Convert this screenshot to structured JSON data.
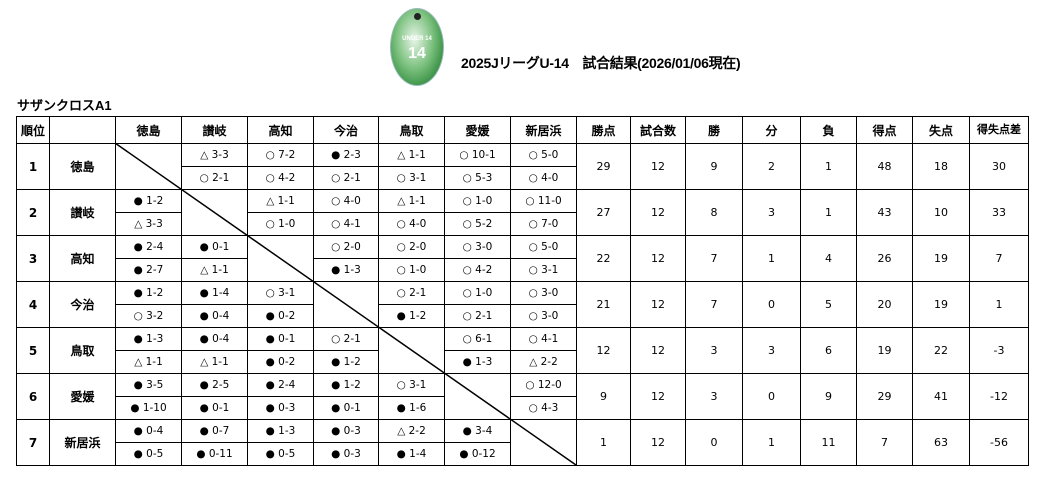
{
  "header": {
    "logo_text": "UNDER 14",
    "title": "2025JリーグU-14　試合結果(2026/01/06現在)"
  },
  "group": "サザンクロスA1",
  "columns": {
    "rank": "順位",
    "teams": [
      "徳島",
      "讃岐",
      "高知",
      "今治",
      "鳥取",
      "愛媛",
      "新居浜"
    ],
    "stats": [
      "勝点",
      "試合数",
      "勝",
      "分",
      "負",
      "得点",
      "失点",
      "得失点差"
    ]
  },
  "legend_symbols": {
    "win": "○",
    "draw": "△",
    "loss": "●"
  },
  "rows": [
    {
      "rank": "1",
      "team": "徳島",
      "matches": [
        null,
        [
          "△ 3-3",
          "○ 2-1"
        ],
        [
          "○ 7-2",
          "○ 4-2"
        ],
        [
          "● 2-3",
          "○ 2-1"
        ],
        [
          "△ 1-1",
          "○ 3-1"
        ],
        [
          "○ 10-1",
          "○ 5-3"
        ],
        [
          "○ 5-0",
          "○ 4-0"
        ]
      ],
      "stats": [
        "29",
        "12",
        "9",
        "2",
        "1",
        "48",
        "18",
        "30"
      ]
    },
    {
      "rank": "2",
      "team": "讃岐",
      "matches": [
        [
          "● 1-2",
          "△ 3-3"
        ],
        null,
        [
          "△ 1-1",
          "○ 1-0"
        ],
        [
          "○ 4-0",
          "○ 4-1"
        ],
        [
          "△ 1-1",
          "○ 4-0"
        ],
        [
          "○ 1-0",
          "○ 5-2"
        ],
        [
          "○ 11-0",
          "○ 7-0"
        ]
      ],
      "stats": [
        "27",
        "12",
        "8",
        "3",
        "1",
        "43",
        "10",
        "33"
      ]
    },
    {
      "rank": "3",
      "team": "高知",
      "matches": [
        [
          "● 2-4",
          "● 2-7"
        ],
        [
          "● 0-1",
          "△ 1-1"
        ],
        null,
        [
          "○ 2-0",
          "● 1-3"
        ],
        [
          "○ 2-0",
          "○ 1-0"
        ],
        [
          "○ 3-0",
          "○ 4-2"
        ],
        [
          "○ 5-0",
          "○ 3-1"
        ]
      ],
      "stats": [
        "22",
        "12",
        "7",
        "1",
        "4",
        "26",
        "19",
        "7"
      ]
    },
    {
      "rank": "4",
      "team": "今治",
      "matches": [
        [
          "● 1-2",
          "○ 3-2"
        ],
        [
          "● 1-4",
          "● 0-4"
        ],
        [
          "○ 3-1",
          "● 0-2"
        ],
        null,
        [
          "○ 2-1",
          "● 1-2"
        ],
        [
          "○ 1-0",
          "○ 2-1"
        ],
        [
          "○ 3-0",
          "○ 3-0"
        ]
      ],
      "stats": [
        "21",
        "12",
        "7",
        "0",
        "5",
        "20",
        "19",
        "1"
      ]
    },
    {
      "rank": "5",
      "team": "鳥取",
      "matches": [
        [
          "● 1-3",
          "△ 1-1"
        ],
        [
          "● 0-4",
          "△ 1-1"
        ],
        [
          "● 0-1",
          "● 0-2"
        ],
        [
          "○ 2-1",
          "● 1-2"
        ],
        null,
        [
          "○ 6-1",
          "● 1-3"
        ],
        [
          "○ 4-1",
          "△ 2-2"
        ]
      ],
      "stats": [
        "12",
        "12",
        "3",
        "3",
        "6",
        "19",
        "22",
        "-3"
      ]
    },
    {
      "rank": "6",
      "team": "愛媛",
      "matches": [
        [
          "● 3-5",
          "● 1-10"
        ],
        [
          "● 2-5",
          "● 0-1"
        ],
        [
          "● 2-4",
          "● 0-3"
        ],
        [
          "● 1-2",
          "● 0-1"
        ],
        [
          "○ 3-1",
          "● 1-6"
        ],
        null,
        [
          "○ 12-0",
          "○ 4-3"
        ]
      ],
      "stats": [
        "9",
        "12",
        "3",
        "0",
        "9",
        "29",
        "41",
        "-12"
      ]
    },
    {
      "rank": "7",
      "team": "新居浜",
      "matches": [
        [
          "● 0-4",
          "● 0-5"
        ],
        [
          "● 0-7",
          "● 0-11"
        ],
        [
          "● 1-3",
          "● 0-5"
        ],
        [
          "● 0-3",
          "● 0-3"
        ],
        [
          "△ 2-2",
          "● 1-4"
        ],
        [
          "● 3-4",
          "● 0-12"
        ],
        null
      ],
      "stats": [
        "1",
        "12",
        "0",
        "1",
        "11",
        "7",
        "63",
        "-56"
      ]
    }
  ]
}
